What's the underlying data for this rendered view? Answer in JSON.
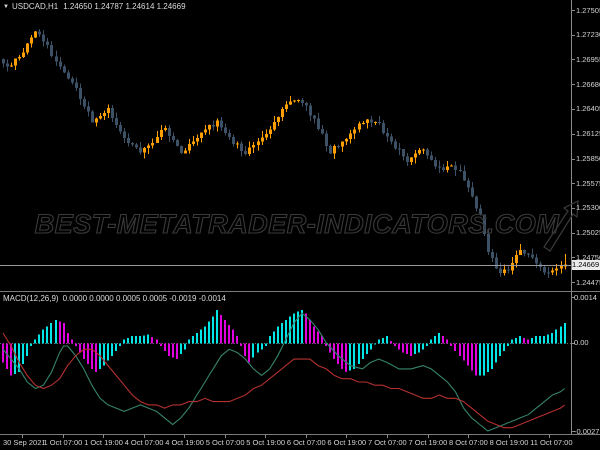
{
  "header": {
    "marker": "▼",
    "symbol": "USDCAD,H1",
    "ohlc": "1.24650 1.24787 1.24614 1.24669"
  },
  "watermark": {
    "text": "BEST-METATRADER-INDICATORS.COM",
    "arrow_icon": "up-right-arrow"
  },
  "price_axis": {
    "labels": [
      "1.27505",
      "1.27230",
      "1.26955",
      "1.26680",
      "1.26405",
      "1.26125",
      "1.25850",
      "1.25575",
      "1.25300",
      "1.25025",
      "1.24750",
      "1.24475"
    ],
    "current": "1.24669"
  },
  "indicator": {
    "name": "MACD(12,26,9)",
    "values_text": "0.0000 0.0000 0.0005 0.0005 -0.0019 -0.0014",
    "axis_labels": [
      {
        "text": "0.0014",
        "value": 0.0014
      },
      {
        "text": "0.00",
        "value": 0
      },
      {
        "text": "-0.0027",
        "value": -0.0027
      }
    ]
  },
  "colors": {
    "background": "#000000",
    "bull": "#ff9e00",
    "bear": "#3d5166",
    "axis_line": "#8a8a8a",
    "separator": "#7a7a7a",
    "text": "#d4d4d4",
    "bid_line": "#9a9a9a",
    "zero_line": "#6a6a6a",
    "hist_up": "#00e6e6",
    "hist_down": "#e000e0",
    "line_teal": "#35836d",
    "line_red": "#b53030",
    "price_tag_bg": "#ececec",
    "watermark": "#3a3a3a"
  },
  "chart_data": [
    {
      "type": "candlestick",
      "title": "USDCAD,H1",
      "ylim": [
        1.24475,
        1.27505
      ],
      "candle_count": 140,
      "last_candle": {
        "o": 1.2465,
        "h": 1.24787,
        "l": 1.24614,
        "c": 1.24669
      },
      "x_labels": [
        "30 Sep 2021",
        "1 Oct 07:00",
        "1 Oct 19:00",
        "4 Oct 07:00",
        "4 Oct 19:00",
        "5 Oct 07:00",
        "5 Oct 19:00",
        "6 Oct 07:00",
        "6 Oct 19:00",
        "7 Oct 07:00",
        "7 Oct 19:00",
        "8 Oct 07:00",
        "8 Oct 19:00",
        "11 Oct 07:00"
      ],
      "close_anchors": [
        [
          0,
          1.2692
        ],
        [
          2,
          1.2688
        ],
        [
          4,
          1.27
        ],
        [
          6,
          1.2712
        ],
        [
          8,
          1.2726
        ],
        [
          10,
          1.2718
        ],
        [
          12,
          1.27
        ],
        [
          14,
          1.2686
        ],
        [
          17,
          1.2668
        ],
        [
          19,
          1.2653
        ],
        [
          22,
          1.2626
        ],
        [
          24,
          1.2634
        ],
        [
          26,
          1.2642
        ],
        [
          28,
          1.2624
        ],
        [
          30,
          1.2609
        ],
        [
          32,
          1.26
        ],
        [
          34,
          1.2593
        ],
        [
          37,
          1.2604
        ],
        [
          40,
          1.2621
        ],
        [
          42,
          1.2605
        ],
        [
          44,
          1.2593
        ],
        [
          46,
          1.26
        ],
        [
          49,
          1.2615
        ],
        [
          53,
          1.2626
        ],
        [
          55,
          1.2615
        ],
        [
          57,
          1.2604
        ],
        [
          60,
          1.2593
        ],
        [
          62,
          1.26
        ],
        [
          64,
          1.2609
        ],
        [
          66,
          1.262
        ],
        [
          68,
          1.2631
        ],
        [
          71,
          1.265
        ],
        [
          74,
          1.2648
        ],
        [
          76,
          1.2635
        ],
        [
          78,
          1.262
        ],
        [
          81,
          1.2592
        ],
        [
          83,
          1.26
        ],
        [
          85,
          1.2608
        ],
        [
          87,
          1.2618
        ],
        [
          89,
          1.2627
        ],
        [
          91,
          1.2625
        ],
        [
          93,
          1.2622
        ],
        [
          95,
          1.261
        ],
        [
          97,
          1.2598
        ],
        [
          100,
          1.2584
        ],
        [
          102,
          1.259
        ],
        [
          104,
          1.2595
        ],
        [
          106,
          1.2585
        ],
        [
          108,
          1.2573
        ],
        [
          111,
          1.2578
        ],
        [
          113,
          1.257
        ],
        [
          115,
          1.2554
        ],
        [
          117,
          1.253
        ],
        [
          118,
          1.2521
        ],
        [
          120,
          1.2483
        ],
        [
          122,
          1.2465
        ],
        [
          123,
          1.2458
        ],
        [
          125,
          1.2463
        ],
        [
          127,
          1.2475
        ],
        [
          128,
          1.2485
        ],
        [
          130,
          1.2477
        ],
        [
          132,
          1.2468
        ],
        [
          133,
          1.2462
        ],
        [
          135,
          1.246
        ],
        [
          137,
          1.2465
        ],
        [
          139,
          1.24669
        ]
      ]
    },
    {
      "type": "macd",
      "label": "MACD(12,26,9)",
      "ylim": [
        -0.0027,
        0.0014
      ],
      "unit": 0.0001,
      "current_values": [
        0.0,
        0.0,
        0.0005,
        0.0005,
        -0.0019,
        -0.0014
      ],
      "histogram_anchors": [
        [
          0,
          -6
        ],
        [
          2,
          -10
        ],
        [
          4,
          -9
        ],
        [
          6,
          -4
        ],
        [
          7,
          -1
        ],
        [
          8,
          1
        ],
        [
          10,
          4
        ],
        [
          12,
          6
        ],
        [
          13,
          7
        ],
        [
          15,
          6
        ],
        [
          16,
          3
        ],
        [
          17,
          1
        ],
        [
          18,
          -1
        ],
        [
          20,
          -5
        ],
        [
          22,
          -8
        ],
        [
          23,
          -9
        ],
        [
          25,
          -7
        ],
        [
          27,
          -4
        ],
        [
          29,
          -1
        ],
        [
          30,
          1
        ],
        [
          32,
          2
        ],
        [
          34,
          2
        ],
        [
          36,
          2.5
        ],
        [
          38,
          1
        ],
        [
          39,
          -1
        ],
        [
          41,
          -4
        ],
        [
          43,
          -5
        ],
        [
          45,
          -2
        ],
        [
          46,
          1
        ],
        [
          48,
          3
        ],
        [
          50,
          5
        ],
        [
          52,
          8
        ],
        [
          53,
          10
        ],
        [
          55,
          7
        ],
        [
          57,
          4
        ],
        [
          58,
          2
        ],
        [
          59,
          -1
        ],
        [
          60,
          -4
        ],
        [
          61,
          -6
        ],
        [
          63,
          -3
        ],
        [
          65,
          -1
        ],
        [
          66,
          2
        ],
        [
          68,
          5
        ],
        [
          70,
          7
        ],
        [
          72,
          9
        ],
        [
          74,
          10
        ],
        [
          75,
          9
        ],
        [
          77,
          5
        ],
        [
          79,
          2
        ],
        [
          80,
          -1
        ],
        [
          82,
          -5
        ],
        [
          84,
          -8
        ],
        [
          85,
          -9
        ],
        [
          87,
          -8
        ],
        [
          89,
          -5
        ],
        [
          91,
          -2
        ],
        [
          93,
          1
        ],
        [
          95,
          2
        ],
        [
          97,
          -1
        ],
        [
          99,
          -3
        ],
        [
          101,
          -4
        ],
        [
          103,
          -3
        ],
        [
          105,
          -1
        ],
        [
          106,
          1
        ],
        [
          108,
          3
        ],
        [
          110,
          1
        ],
        [
          111,
          -1
        ],
        [
          113,
          -4
        ],
        [
          115,
          -7
        ],
        [
          117,
          -10
        ],
        [
          119,
          -10
        ],
        [
          121,
          -8
        ],
        [
          123,
          -4
        ],
        [
          125,
          -1
        ],
        [
          126,
          1
        ],
        [
          128,
          2
        ],
        [
          130,
          1
        ],
        [
          132,
          2
        ],
        [
          134,
          2
        ],
        [
          136,
          3
        ],
        [
          138,
          5
        ],
        [
          139,
          6
        ]
      ],
      "signal_line_anchors": [
        [
          0,
          -2
        ],
        [
          2,
          -5
        ],
        [
          4,
          -8
        ],
        [
          6,
          -12
        ],
        [
          8,
          -14
        ],
        [
          10,
          -13
        ],
        [
          12,
          -9
        ],
        [
          14,
          -3
        ],
        [
          15,
          -1
        ],
        [
          16,
          -1
        ],
        [
          18,
          -4
        ],
        [
          20,
          -8
        ],
        [
          22,
          -13
        ],
        [
          24,
          -17
        ],
        [
          26,
          -19
        ],
        [
          28,
          -20
        ],
        [
          30,
          -21
        ],
        [
          32,
          -20
        ],
        [
          34,
          -19
        ],
        [
          36,
          -20
        ],
        [
          38,
          -21
        ],
        [
          40,
          -23
        ],
        [
          42,
          -25
        ],
        [
          44,
          -23
        ],
        [
          46,
          -20
        ],
        [
          48,
          -16
        ],
        [
          50,
          -12
        ],
        [
          52,
          -8
        ],
        [
          54,
          -4
        ],
        [
          56,
          -2
        ],
        [
          58,
          -3
        ],
        [
          60,
          -5
        ],
        [
          62,
          -8
        ],
        [
          64,
          -10
        ],
        [
          66,
          -8
        ],
        [
          68,
          -4
        ],
        [
          70,
          1
        ],
        [
          72,
          6
        ],
        [
          74,
          9
        ],
        [
          76,
          7
        ],
        [
          78,
          4
        ],
        [
          80,
          0
        ],
        [
          83,
          -4
        ],
        [
          86,
          -7
        ],
        [
          89,
          -8
        ],
        [
          91,
          -6
        ],
        [
          93,
          -5
        ],
        [
          95,
          -6
        ],
        [
          98,
          -8
        ],
        [
          101,
          -8
        ],
        [
          104,
          -7
        ],
        [
          106,
          -8
        ],
        [
          108,
          -10
        ],
        [
          110,
          -12
        ],
        [
          112,
          -15
        ],
        [
          114,
          -20
        ],
        [
          116,
          -23
        ],
        [
          118,
          -25
        ],
        [
          120,
          -27
        ],
        [
          122,
          -26
        ],
        [
          124,
          -25
        ],
        [
          126,
          -24
        ],
        [
          128,
          -23
        ],
        [
          130,
          -22
        ],
        [
          132,
          -20
        ],
        [
          134,
          -18
        ],
        [
          136,
          -16
        ],
        [
          138,
          -15
        ],
        [
          139,
          -14
        ]
      ],
      "trigger_line_anchors": [
        [
          0,
          3
        ],
        [
          2,
          -1
        ],
        [
          4,
          -6
        ],
        [
          6,
          -10
        ],
        [
          8,
          -13
        ],
        [
          10,
          -14
        ],
        [
          12,
          -13
        ],
        [
          14,
          -11
        ],
        [
          16,
          -7
        ],
        [
          18,
          -4
        ],
        [
          20,
          -2
        ],
        [
          22,
          -2
        ],
        [
          24,
          -4
        ],
        [
          26,
          -7
        ],
        [
          28,
          -10
        ],
        [
          30,
          -13
        ],
        [
          32,
          -16
        ],
        [
          34,
          -18
        ],
        [
          36,
          -19
        ],
        [
          38,
          -19
        ],
        [
          40,
          -20
        ],
        [
          42,
          -19
        ],
        [
          44,
          -19
        ],
        [
          46,
          -18
        ],
        [
          48,
          -18
        ],
        [
          50,
          -17
        ],
        [
          52,
          -18
        ],
        [
          54,
          -18
        ],
        [
          56,
          -18
        ],
        [
          58,
          -17
        ],
        [
          60,
          -16
        ],
        [
          62,
          -14
        ],
        [
          64,
          -13
        ],
        [
          66,
          -11
        ],
        [
          68,
          -9
        ],
        [
          70,
          -7
        ],
        [
          72,
          -5
        ],
        [
          74,
          -5
        ],
        [
          76,
          -5
        ],
        [
          78,
          -7
        ],
        [
          80,
          -8
        ],
        [
          82,
          -10
        ],
        [
          84,
          -11
        ],
        [
          86,
          -11
        ],
        [
          88,
          -12
        ],
        [
          90,
          -12
        ],
        [
          92,
          -13
        ],
        [
          94,
          -13
        ],
        [
          96,
          -14
        ],
        [
          98,
          -14
        ],
        [
          100,
          -15
        ],
        [
          102,
          -16
        ],
        [
          104,
          -17
        ],
        [
          106,
          -17
        ],
        [
          108,
          -16
        ],
        [
          110,
          -17
        ],
        [
          112,
          -17
        ],
        [
          114,
          -18
        ],
        [
          116,
          -20
        ],
        [
          118,
          -22
        ],
        [
          120,
          -24
        ],
        [
          122,
          -25
        ],
        [
          124,
          -26
        ],
        [
          126,
          -26
        ],
        [
          128,
          -25
        ],
        [
          130,
          -24
        ],
        [
          132,
          -23
        ],
        [
          134,
          -22
        ],
        [
          136,
          -21
        ],
        [
          138,
          -20
        ],
        [
          139,
          -19
        ]
      ]
    }
  ]
}
